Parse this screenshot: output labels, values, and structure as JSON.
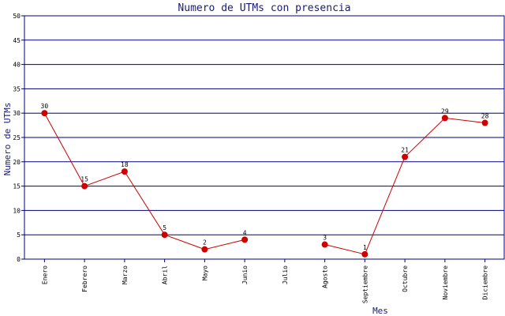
{
  "chart_data": {
    "type": "line",
    "title": "Numero de UTMs con presencia",
    "xlabel": "Mes",
    "ylabel": "Numero de UTMs",
    "ylim": [
      0,
      50
    ],
    "yticks": [
      0,
      5,
      10,
      15,
      20,
      25,
      30,
      35,
      40,
      45,
      50
    ],
    "grid": true,
    "categories": [
      "Enero",
      "Febrero",
      "Marzo",
      "Abril",
      "Mayo",
      "Junio",
      "Julio",
      "Agosto",
      "Septiembre",
      "Octubre",
      "Noviembre",
      "Diciembre"
    ],
    "series": [
      {
        "values": [
          30,
          15,
          18,
          5,
          2,
          4,
          null,
          3,
          1,
          21,
          29,
          28
        ]
      }
    ],
    "colors": {
      "line": "#cc0000",
      "marker": "#cc0000",
      "grid": "#000080",
      "text": "#1a1a7a"
    }
  }
}
